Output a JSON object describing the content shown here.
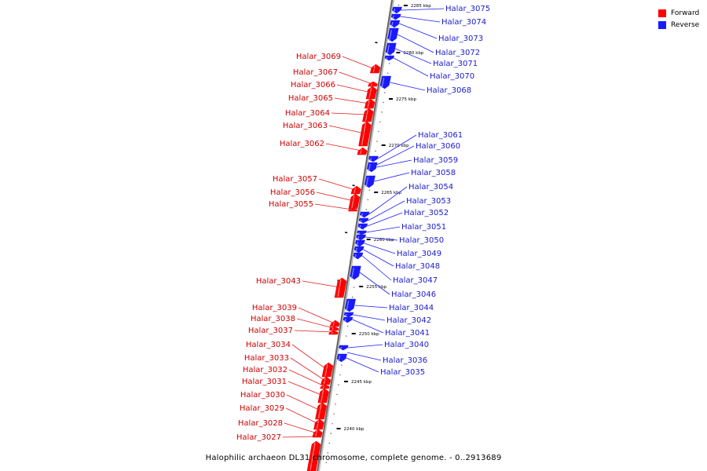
{
  "caption": "Halophilic archaeon DL31 chromosome, complete genome. - 0..2913689",
  "legend": {
    "forward_label": "Forward",
    "reverse_label": "Reverse",
    "forward_color": "#ff0000",
    "reverse_color": "#1a1aff"
  },
  "scale_ticks": [
    "2285 kbp",
    "2280 kbp",
    "2275 kbp",
    "2270 kbp",
    "2265 kbp",
    "2260 kbp",
    "2255 kbp",
    "2250 kbp",
    "2245 kbp",
    "2240 kbp"
  ],
  "forward_genes": [
    "Halar_3069",
    "Halar_3067",
    "Halar_3066",
    "Halar_3065",
    "Halar_3064",
    "Halar_3063",
    "Halar_3062",
    "Halar_3057",
    "Halar_3056",
    "Halar_3055",
    "Halar_3043",
    "Halar_3039",
    "Halar_3038",
    "Halar_3037",
    "Halar_3034",
    "Halar_3033",
    "Halar_3032",
    "Halar_3031",
    "Halar_3030",
    "Halar_3029",
    "Halar_3028",
    "Halar_3027"
  ],
  "reverse_genes": [
    "Halar_3075",
    "Halar_3074",
    "Halar_3073",
    "Halar_3072",
    "Halar_3071",
    "Halar_3070",
    "Halar_3068",
    "Halar_3061",
    "Halar_3060",
    "Halar_3059",
    "Halar_3058",
    "Halar_3054",
    "Halar_3053",
    "Halar_3052",
    "Halar_3051",
    "Halar_3050",
    "Halar_3049",
    "Halar_3048",
    "Halar_3047",
    "Halar_3046",
    "Halar_3044",
    "Halar_3042",
    "Halar_3041",
    "Halar_3040",
    "Halar_3036",
    "Halar_3035"
  ]
}
